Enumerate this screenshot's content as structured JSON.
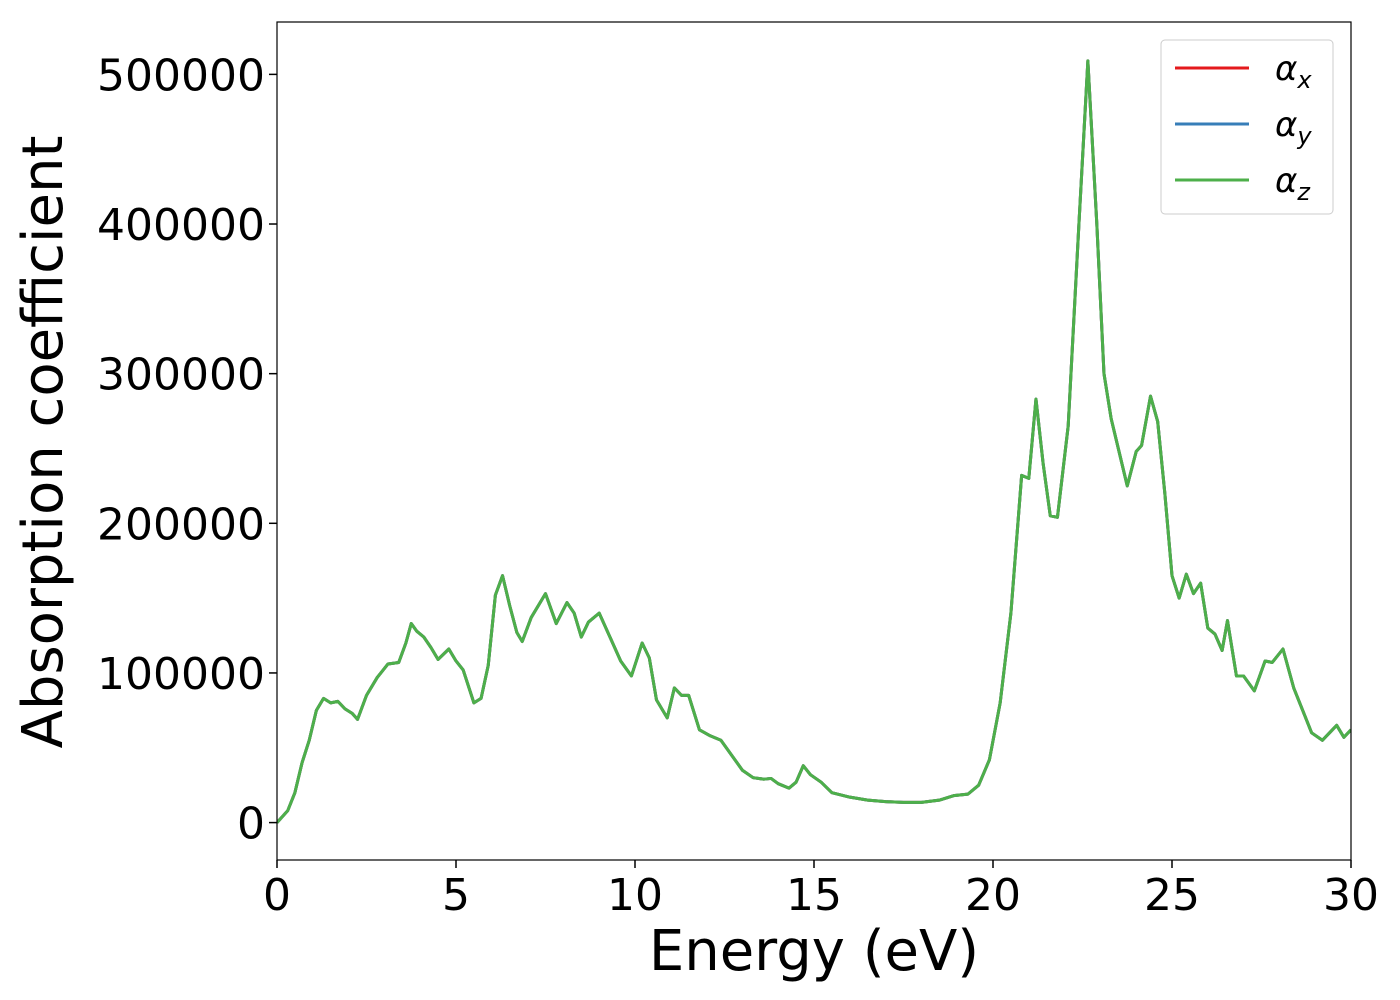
{
  "chart_data": {
    "type": "line",
    "xlabel": "Energy (eV)",
    "ylabel": "Absorption coefficient",
    "x": [
      0,
      0.3,
      0.5,
      0.7,
      0.9,
      1.1,
      1.3,
      1.5,
      1.7,
      1.9,
      2.1,
      2.25,
      2.5,
      2.8,
      3.1,
      3.4,
      3.6,
      3.75,
      3.9,
      4.1,
      4.3,
      4.5,
      4.8,
      5.0,
      5.2,
      5.5,
      5.7,
      5.9,
      6.1,
      6.3,
      6.5,
      6.7,
      6.85,
      7.1,
      7.5,
      7.8,
      8.1,
      8.3,
      8.5,
      8.7,
      9.0,
      9.3,
      9.6,
      9.9,
      10.2,
      10.4,
      10.6,
      10.9,
      11.1,
      11.3,
      11.5,
      11.8,
      12.1,
      12.4,
      12.7,
      13.0,
      13.3,
      13.6,
      13.8,
      14.0,
      14.3,
      14.5,
      14.7,
      14.9,
      15.2,
      15.5,
      16.0,
      16.5,
      17.0,
      17.5,
      18.0,
      18.5,
      18.9,
      19.3,
      19.6,
      19.9,
      20.2,
      20.5,
      20.8,
      21.0,
      21.2,
      21.4,
      21.6,
      21.8,
      22.1,
      22.4,
      22.65,
      22.9,
      23.1,
      23.3,
      23.5,
      23.75,
      24.0,
      24.15,
      24.4,
      24.6,
      24.8,
      25.0,
      25.2,
      25.4,
      25.6,
      25.8,
      26.0,
      26.2,
      26.4,
      26.55,
      26.8,
      27.0,
      27.3,
      27.6,
      27.8,
      28.1,
      28.4,
      28.7,
      28.9,
      29.2,
      29.6,
      29.8,
      30.0
    ],
    "series": [
      {
        "name": "αx",
        "color": "#e41a1c",
        "values": [
          0,
          8000,
          20000,
          40000,
          55000,
          75000,
          83000,
          80000,
          81000,
          76000,
          73000,
          69000,
          85000,
          97000,
          106000,
          107000,
          120000,
          133000,
          128000,
          124000,
          117000,
          109000,
          116000,
          108000,
          102000,
          80000,
          83000,
          105000,
          152000,
          165000,
          145000,
          127000,
          121000,
          137000,
          153000,
          133000,
          147000,
          140000,
          124000,
          134000,
          140000,
          124000,
          108000,
          98000,
          120000,
          110000,
          82000,
          70000,
          90000,
          85000,
          85000,
          62000,
          58000,
          55000,
          45000,
          35000,
          30000,
          29000,
          29500,
          26000,
          23000,
          27000,
          38000,
          32000,
          27000,
          20000,
          17000,
          15000,
          14000,
          13500,
          13500,
          15000,
          18000,
          19000,
          25000,
          42000,
          80000,
          140000,
          232000,
          230000,
          283000,
          240000,
          205000,
          204000,
          265000,
          400000,
          509000,
          400000,
          300000,
          270000,
          250000,
          225000,
          248000,
          252000,
          285000,
          268000,
          220000,
          165000,
          150000,
          166000,
          153000,
          160000,
          130000,
          126000,
          115000,
          135000,
          98000,
          98000,
          88000,
          108000,
          107000,
          116000,
          90000,
          72000,
          60000,
          55000,
          65000,
          57000,
          62000
        ]
      },
      {
        "name": "αy",
        "color": "#377eb8",
        "values": [
          0,
          8000,
          20000,
          40000,
          55000,
          75000,
          83000,
          80000,
          81000,
          76000,
          73000,
          69000,
          85000,
          97000,
          106000,
          107000,
          120000,
          133000,
          128000,
          124000,
          117000,
          109000,
          116000,
          108000,
          102000,
          80000,
          83000,
          105000,
          152000,
          165000,
          145000,
          127000,
          121000,
          137000,
          153000,
          133000,
          147000,
          140000,
          124000,
          134000,
          140000,
          124000,
          108000,
          98000,
          120000,
          110000,
          82000,
          70000,
          90000,
          85000,
          85000,
          62000,
          58000,
          55000,
          45000,
          35000,
          30000,
          29000,
          29500,
          26000,
          23000,
          27000,
          38000,
          32000,
          27000,
          20000,
          17000,
          15000,
          14000,
          13500,
          13500,
          15000,
          18000,
          19000,
          25000,
          42000,
          80000,
          140000,
          232000,
          230000,
          283000,
          240000,
          205000,
          204000,
          265000,
          400000,
          509000,
          400000,
          300000,
          270000,
          250000,
          225000,
          248000,
          252000,
          285000,
          268000,
          220000,
          165000,
          150000,
          166000,
          153000,
          160000,
          130000,
          126000,
          115000,
          135000,
          98000,
          98000,
          88000,
          108000,
          107000,
          116000,
          90000,
          72000,
          60000,
          55000,
          65000,
          57000,
          62000
        ]
      },
      {
        "name": "αz",
        "color": "#4daf4a",
        "values": [
          0,
          8000,
          20000,
          40000,
          55000,
          75000,
          83000,
          80000,
          81000,
          76000,
          73000,
          69000,
          85000,
          97000,
          106000,
          107000,
          120000,
          133000,
          128000,
          124000,
          117000,
          109000,
          116000,
          108000,
          102000,
          80000,
          83000,
          105000,
          152000,
          165000,
          145000,
          127000,
          121000,
          137000,
          153000,
          133000,
          147000,
          140000,
          124000,
          134000,
          140000,
          124000,
          108000,
          98000,
          120000,
          110000,
          82000,
          70000,
          90000,
          85000,
          85000,
          62000,
          58000,
          55000,
          45000,
          35000,
          30000,
          29000,
          29500,
          26000,
          23000,
          27000,
          38000,
          32000,
          27000,
          20000,
          17000,
          15000,
          14000,
          13500,
          13500,
          15000,
          18000,
          19000,
          25000,
          42000,
          80000,
          140000,
          232000,
          230000,
          283000,
          240000,
          205000,
          204000,
          265000,
          400000,
          509000,
          400000,
          300000,
          270000,
          250000,
          225000,
          248000,
          252000,
          285000,
          268000,
          220000,
          165000,
          150000,
          166000,
          153000,
          160000,
          130000,
          126000,
          115000,
          135000,
          98000,
          98000,
          88000,
          108000,
          107000,
          116000,
          90000,
          72000,
          60000,
          55000,
          65000,
          57000,
          62000
        ]
      }
    ],
    "xlim": [
      0,
      30
    ],
    "xticks": [
      0,
      5,
      10,
      15,
      20,
      25,
      30
    ],
    "ylim": [
      -25000,
      535000
    ],
    "yticks": [
      0,
      100000,
      200000,
      300000,
      400000,
      500000
    ],
    "grid": false,
    "legend": "upper right"
  }
}
